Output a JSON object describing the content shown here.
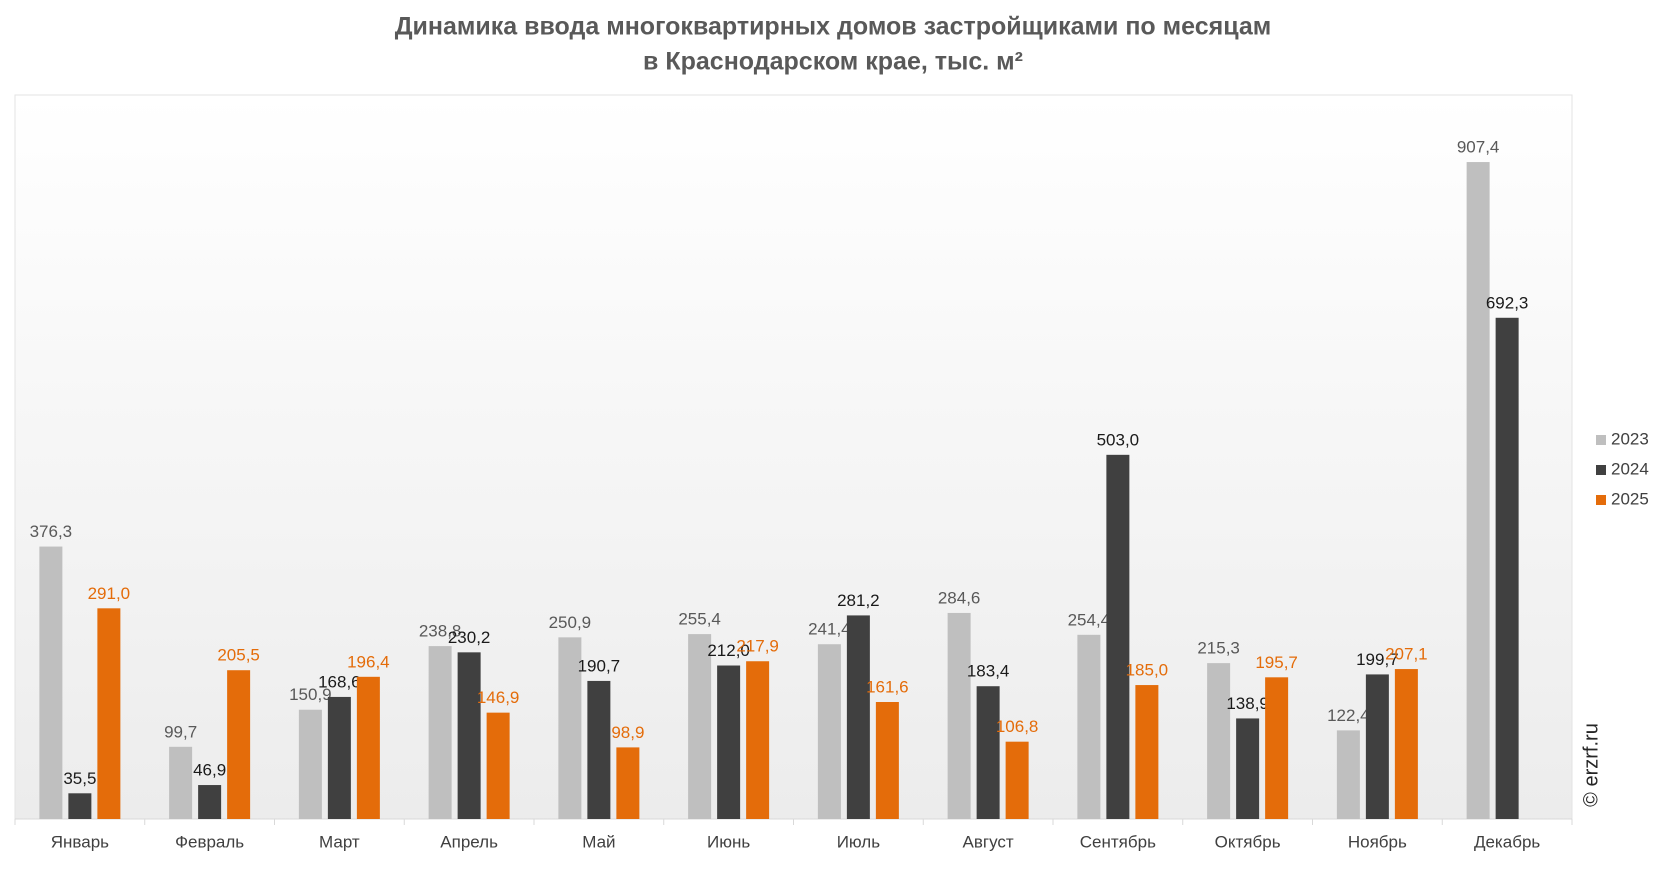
{
  "chart_data": {
    "type": "bar",
    "title": [
      "Динамика ввода многоквартирных домов застройщиками по месяцам",
      "в Краснодарском крае, тыс. м²"
    ],
    "categories": [
      "Январь",
      "Февраль",
      "Март",
      "Апрель",
      "Май",
      "Июнь",
      "Июль",
      "Август",
      "Сентябрь",
      "Октябрь",
      "Ноябрь",
      "Декабрь"
    ],
    "series": [
      {
        "name": "2023",
        "color": "#bfbfbf",
        "label_color": "#595959",
        "values": [
          376.3,
          99.7,
          150.9,
          238.8,
          250.9,
          255.4,
          241.4,
          284.6,
          254.4,
          215.3,
          122.4,
          907.4
        ],
        "value_labels": [
          "376,3",
          "99,7",
          "150,9",
          "238,8",
          "250,9",
          "255,4",
          "241,4",
          "284,6",
          "254,4",
          "215,3",
          "122,4",
          "907,4"
        ]
      },
      {
        "name": "2024",
        "color": "#404040",
        "label_color": "#1a1a1a",
        "values": [
          35.5,
          46.9,
          168.6,
          230.2,
          190.7,
          212.0,
          281.2,
          183.4,
          503.0,
          138.9,
          199.7,
          692.3
        ],
        "value_labels": [
          "35,5",
          "46,9",
          "168,6",
          "230,2",
          "190,7",
          "212,0",
          "281,2",
          "183,4",
          "503,0",
          "138,9",
          "199,7",
          "692,3"
        ]
      },
      {
        "name": "2025",
        "color": "#e46c0a",
        "label_color": "#e46c0a",
        "values": [
          291.0,
          205.5,
          196.4,
          146.9,
          98.9,
          217.9,
          161.6,
          106.8,
          185.0,
          195.7,
          207.1,
          null
        ],
        "value_labels": [
          "291,0",
          "205,5",
          "196,4",
          "146,9",
          "98,9",
          "217,9",
          "161,6",
          "106,8",
          "185,0",
          "195,7",
          "207,1",
          null
        ]
      }
    ],
    "ylim": [
      0,
      1000
    ],
    "legend": "right",
    "watermark": "© erzrf.ru"
  }
}
